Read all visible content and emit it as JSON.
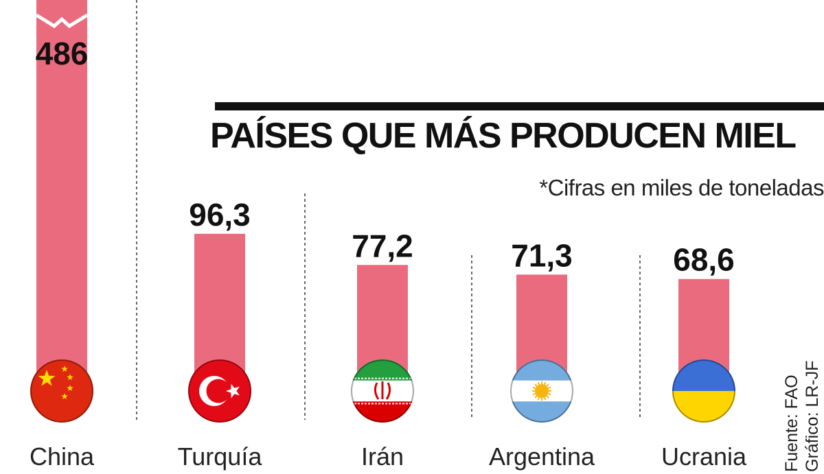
{
  "chart_data": {
    "type": "bar",
    "title": "PAÍSES QUE MÁS PRODUCEN MIEL",
    "subtitle": "*Cifras en miles de toneladas",
    "categories": [
      "China",
      "Turquía",
      "Irán",
      "Argentina",
      "Ucrania"
    ],
    "values": [
      486,
      96.3,
      77.2,
      71.3,
      68.6
    ],
    "value_labels": [
      "486",
      "96,3",
      "77,2",
      "71,3",
      "68,6"
    ],
    "flags": [
      "china-flag",
      "turkey-flag",
      "iran-flag",
      "argentina-flag",
      "ukraine-flag"
    ],
    "bar_color": "#ea6b7d",
    "truncated_first_bar": true,
    "grid": false,
    "legend": "none"
  },
  "footer": {
    "source": "Fuente: FAO",
    "credit": "Gráfico: LR-JF"
  },
  "colors": {
    "text": "#111111",
    "bar": "#ea6b7d",
    "background": "#ffffff"
  }
}
